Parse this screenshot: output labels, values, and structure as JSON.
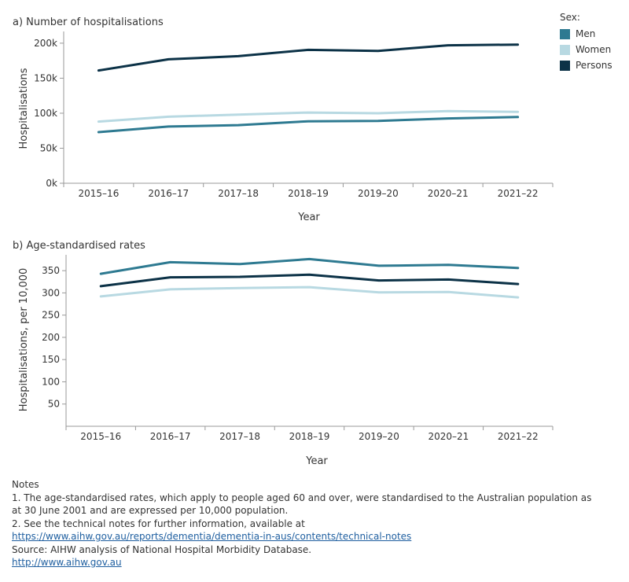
{
  "legend": {
    "title": "Sex:",
    "items": [
      {
        "label": "Men",
        "color": "#2e7a91"
      },
      {
        "label": "Women",
        "color": "#b8d9e2"
      },
      {
        "label": "Persons",
        "color": "#0c3247"
      }
    ]
  },
  "chart_data": [
    {
      "type": "line",
      "title": "a) Number of hospitalisations",
      "xlabel": "Year",
      "ylabel": "Hospitalisations",
      "categories": [
        "2015–16",
        "2016–17",
        "2017–18",
        "2018–19",
        "2019–20",
        "2020–21",
        "2021–22"
      ],
      "yticks": [
        "0k",
        "50k",
        "100k",
        "150k",
        "200k"
      ],
      "ylim": [
        0,
        210000
      ],
      "grid": false,
      "series": [
        {
          "name": "Men",
          "color": "#2e7a91",
          "values": [
            73000,
            81000,
            83000,
            88500,
            89000,
            92500,
            94500
          ]
        },
        {
          "name": "Women",
          "color": "#b8d9e2",
          "values": [
            88000,
            95000,
            98000,
            101000,
            100000,
            103000,
            102000
          ]
        },
        {
          "name": "Persons",
          "color": "#0c3247",
          "values": [
            161000,
            177000,
            181500,
            190500,
            189000,
            197000,
            198000
          ]
        }
      ]
    },
    {
      "type": "line",
      "title": "b) Age-standardised rates",
      "xlabel": "Year",
      "ylabel": "Hospitalisations, per 10,000",
      "categories": [
        "2015–16",
        "2016–17",
        "2017–18",
        "2018–19",
        "2019–20",
        "2020–21",
        "2021–22"
      ],
      "yticks": [
        "50",
        "100",
        "150",
        "200",
        "250",
        "300",
        "350"
      ],
      "ylim": [
        0,
        375
      ],
      "grid": false,
      "series": [
        {
          "name": "Men",
          "color": "#2e7a91",
          "values": [
            343,
            369,
            365,
            376,
            361,
            363,
            356
          ]
        },
        {
          "name": "Women",
          "color": "#b8d9e2",
          "values": [
            292,
            308,
            311,
            313,
            301,
            302,
            290
          ]
        },
        {
          "name": "Persons",
          "color": "#0c3247",
          "values": [
            315,
            335,
            336,
            341,
            328,
            330,
            320
          ]
        }
      ]
    }
  ],
  "notes": {
    "heading": "Notes",
    "note1_line1": "1. The age-standardised rates, which apply to people aged 60 and over, were standardised to the Australian population as",
    "note1_line2": "at 30 June 2001 and are expressed per 10,000 population.",
    "note2": "2. See the technical notes for further information, available at",
    "link1": "https://www.aihw.gov.au/reports/dementia/dementia-in-aus/contents/technical-notes",
    "source": "Source:  AIHW analysis of National Hospital Morbidity Database.",
    "link2": "http://www.aihw.gov.au"
  }
}
